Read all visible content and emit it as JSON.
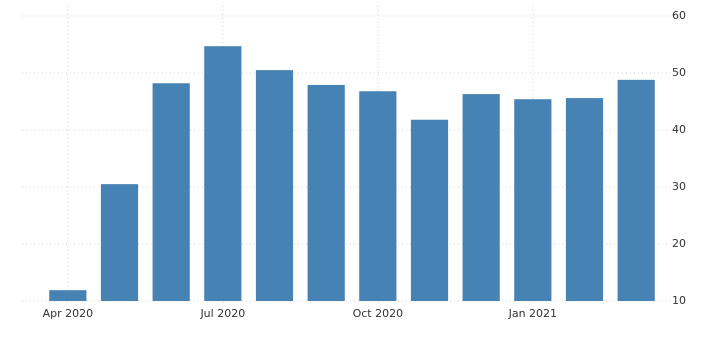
{
  "chart_data": {
    "type": "bar",
    "categories": [
      "Apr 2020",
      null,
      null,
      "Jul 2020",
      null,
      null,
      "Oct 2020",
      null,
      null,
      "Jan 2021",
      null,
      null
    ],
    "values": [
      11.9,
      30.5,
      48.2,
      54.7,
      50.5,
      47.9,
      46.8,
      41.8,
      46.3,
      45.4,
      45.6,
      48.8
    ],
    "color": "#4682b4",
    "ylim": [
      10,
      60
    ],
    "yticks": [
      10,
      20,
      30,
      40,
      50,
      60
    ],
    "grid": true,
    "y_axis_side": "right"
  }
}
